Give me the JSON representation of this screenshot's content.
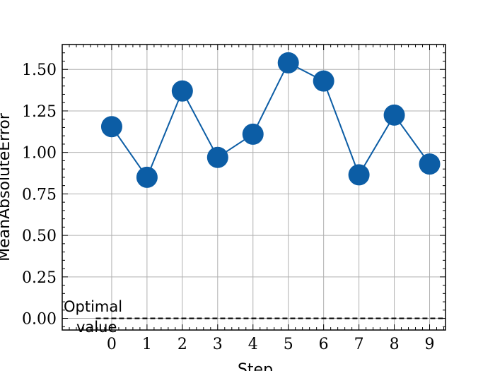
{
  "chart_data": {
    "type": "line",
    "title": "",
    "xlabel": "Step",
    "ylabel": "MeanAbsoluteError",
    "x": [
      0,
      1,
      2,
      3,
      4,
      5,
      6,
      7,
      8,
      9
    ],
    "xticks": [
      "0",
      "1",
      "2",
      "3",
      "4",
      "5",
      "6",
      "7",
      "8",
      "9"
    ],
    "yticks": [
      "0.00",
      "0.25",
      "0.50",
      "0.75",
      "1.00",
      "1.25",
      "1.50"
    ],
    "ytick_values": [
      0,
      0.25,
      0.5,
      0.75,
      1.0,
      1.25,
      1.5
    ],
    "series": [
      {
        "values": [
          1.155,
          0.85,
          1.37,
          0.97,
          1.11,
          1.54,
          1.43,
          0.865,
          1.225,
          0.93
        ]
      }
    ],
    "xlim": [
      -1.4,
      9.45
    ],
    "ylim": [
      -0.07,
      1.65
    ],
    "grid": true,
    "line_color": "#0C5DA5",
    "reference_line": {
      "y": 0,
      "style": "dashed",
      "color": "#000000"
    },
    "annotation": {
      "line1": "Optimal",
      "line2": "value"
    }
  }
}
